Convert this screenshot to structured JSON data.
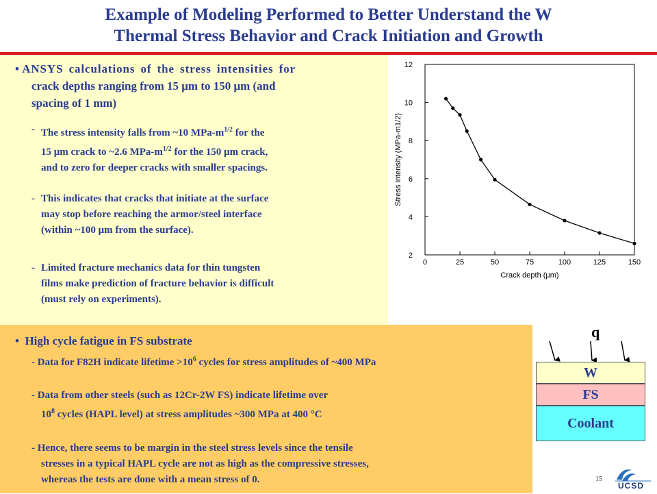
{
  "slide": {
    "title_line1": "Example of Modeling Performed to Better Understand the W",
    "title_line2": "Thermal Stress Behavior and Crack Initiation and Growth",
    "page_number": "15",
    "logo_text": "UCSD"
  },
  "section1": {
    "bullet": "•",
    "heading_line1": "ANSYS calculations of the stress intensities for",
    "heading_line2": "crack depths ranging from 15 μm to 150 μm (and",
    "heading_line3": "spacing of 1 mm)",
    "points": [
      {
        "dash": "-",
        "line1": "The stress intensity falls from ~10 MPa-m",
        "sup1": "1/2",
        "line1_end": " for the",
        "line2": "15 μm crack to ~2.6 MPa-m",
        "sup2": "1/2",
        "line2_end": " for the 150 μm crack,",
        "line3": "and to zero for deeper cracks with smaller spacings."
      },
      {
        "dash": "-",
        "line1": "This indicates that cracks that initiate at the surface",
        "line2": "may stop before reaching the armor/steel interface",
        "line3": "(within ~100 μm from the surface)."
      },
      {
        "dash": "-",
        "line1": "Limited fracture mechanics data for thin tungsten",
        "line2": "films make prediction of fracture behavior is difficult",
        "line3": "(must rely on experiments)."
      }
    ]
  },
  "section2": {
    "bullet": "•",
    "heading": "High cycle fatigue in FS substrate",
    "points": [
      {
        "dash": "-",
        "line1": "Data for F82H indicate lifetime >10",
        "sup1": "6",
        "line1_end": " cycles for stress amplitudes of ~400 MPa"
      },
      {
        "dash": "-",
        "line1": "Data from other steels (such as 12Cr-2W FS) indicate lifetime over",
        "line2": "10",
        "sup2": "8",
        "line2_end": " cycles (HAPL level) at stress amplitudes ~300 MPa at 400 °C"
      },
      {
        "dash": "-",
        "line1": "Hence, there seems to be margin in the steel stress levels since the tensile",
        "line2": "stresses in a typical HAPL cycle are not as high as the compressive stresses,",
        "line3": "whereas the tests are done with a mean stress of 0."
      }
    ]
  },
  "schematic": {
    "heat_flux_label": "q",
    "layers": [
      {
        "label": "W",
        "color": "#ffffcc"
      },
      {
        "label": "FS",
        "color": "#ffc0c0"
      },
      {
        "label": "Coolant",
        "color": "#66ffff"
      }
    ]
  },
  "chart_data": {
    "type": "line",
    "xlabel": "Crack depth (μm)",
    "ylabel": "Stress intensity (MPa-m1/2)",
    "xlim": [
      0,
      150
    ],
    "ylim": [
      2,
      12
    ],
    "xticks": [
      0,
      25,
      50,
      75,
      100,
      125,
      150
    ],
    "yticks": [
      2,
      4,
      6,
      8,
      10,
      12
    ],
    "x": [
      15,
      20,
      25,
      30,
      40,
      50,
      75,
      100,
      125,
      150
    ],
    "values": [
      10.2,
      9.7,
      9.35,
      8.5,
      7.0,
      5.95,
      4.65,
      3.8,
      3.15,
      2.6
    ]
  }
}
